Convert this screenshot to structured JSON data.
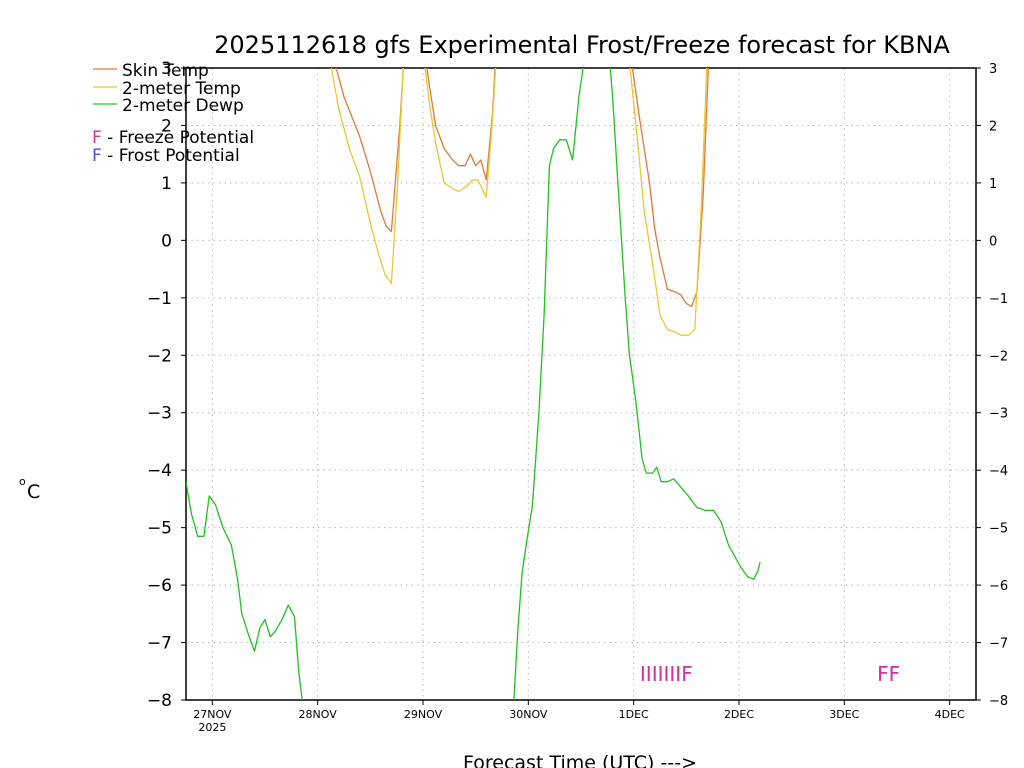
{
  "chart_data": {
    "type": "line",
    "title": "2025112618 gfs Experimental Frost/Freeze forecast for KBNA",
    "ylabel": "°C",
    "ylabel_unit": "C",
    "ylabel_degree": "o",
    "xlabel": "Forecast Time (UTC) --->",
    "ylim": [
      -8,
      3
    ],
    "xlim": [
      -0.25,
      7.25
    ],
    "yticks": [
      3,
      2,
      1,
      0,
      -1,
      -2,
      -3,
      -4,
      -5,
      -6,
      -7,
      -8
    ],
    "ytick_labels": [
      "3",
      "2",
      "1",
      "0",
      "−1",
      "−2",
      "−3",
      "−4",
      "−5",
      "−6",
      "−7",
      "−8"
    ],
    "xticks": [
      0,
      1,
      2,
      3,
      4,
      5,
      6,
      7
    ],
    "xtick_labels": [
      "27NOV",
      "28NOV",
      "29NOV",
      "30NOV",
      "1DEC",
      "2DEC",
      "3DEC",
      "4DEC"
    ],
    "xtick_sublabel": "2025",
    "grid": true,
    "legend": [
      {
        "label": "Skin Temp",
        "color": "#e07a3a"
      },
      {
        "label": "2-meter Temp",
        "color": "#e8c832"
      },
      {
        "label": "2-meter Dewp",
        "color": "#22c022"
      }
    ],
    "potential_legend": [
      {
        "letter": "F",
        "text": " - Freeze Potential",
        "color": "#d0309a"
      },
      {
        "letter": "F",
        "text": " - Frost Potential",
        "color": "#4a52e0"
      }
    ],
    "series": [
      {
        "name": "Skin Temp",
        "color": "#e07a3a",
        "segments": [
          [
            [
              1.1,
              3.5
            ],
            [
              1.25,
              2.5
            ],
            [
              1.4,
              1.8
            ],
            [
              1.5,
              1.2
            ],
            [
              1.6,
              0.5
            ],
            [
              1.65,
              0.25
            ],
            [
              1.7,
              0.15
            ],
            [
              1.78,
              2.0
            ],
            [
              1.83,
              3.5
            ]
          ],
          [
            [
              2.0,
              3.5
            ],
            [
              2.06,
              2.7
            ],
            [
              2.12,
              2.0
            ],
            [
              2.2,
              1.6
            ],
            [
              2.28,
              1.4
            ],
            [
              2.34,
              1.3
            ],
            [
              2.4,
              1.3
            ],
            [
              2.45,
              1.5
            ],
            [
              2.5,
              1.3
            ],
            [
              2.55,
              1.4
            ],
            [
              2.6,
              1.05
            ],
            [
              2.66,
              2.2
            ],
            [
              2.7,
              3.5
            ]
          ],
          [
            [
              3.95,
              3.5
            ],
            [
              4.05,
              2.2
            ],
            [
              4.15,
              1.0
            ],
            [
              4.2,
              0.2
            ],
            [
              4.25,
              -0.3
            ],
            [
              4.32,
              -0.85
            ],
            [
              4.4,
              -0.9
            ],
            [
              4.45,
              -0.95
            ],
            [
              4.5,
              -1.1
            ],
            [
              4.55,
              -1.15
            ],
            [
              4.6,
              -0.9
            ],
            [
              4.66,
              0.8
            ],
            [
              4.72,
              3.5
            ]
          ]
        ]
      },
      {
        "name": "2-meter Temp",
        "color": "#e8c832",
        "segments": [
          [
            [
              1.1,
              3.3
            ],
            [
              1.2,
              2.3
            ],
            [
              1.3,
              1.6
            ],
            [
              1.4,
              1.1
            ],
            [
              1.5,
              0.3
            ],
            [
              1.58,
              -0.25
            ],
            [
              1.64,
              -0.6
            ],
            [
              1.7,
              -0.75
            ],
            [
              1.76,
              1.0
            ],
            [
              1.82,
              3.3
            ]
          ],
          [
            [
              2.0,
              3.3
            ],
            [
              2.06,
              2.4
            ],
            [
              2.12,
              1.7
            ],
            [
              2.2,
              1.0
            ],
            [
              2.28,
              0.9
            ],
            [
              2.34,
              0.85
            ],
            [
              2.42,
              0.95
            ],
            [
              2.47,
              1.05
            ],
            [
              2.52,
              1.05
            ],
            [
              2.6,
              0.75
            ],
            [
              2.66,
              2.1
            ],
            [
              2.7,
              3.3
            ]
          ],
          [
            [
              3.95,
              3.3
            ],
            [
              4.05,
              1.5
            ],
            [
              4.1,
              0.5
            ],
            [
              4.18,
              -0.4
            ],
            [
              4.25,
              -1.3
            ],
            [
              4.32,
              -1.55
            ],
            [
              4.4,
              -1.6
            ],
            [
              4.45,
              -1.65
            ],
            [
              4.52,
              -1.65
            ],
            [
              4.58,
              -1.55
            ],
            [
              4.64,
              0.5
            ],
            [
              4.7,
              3.3
            ]
          ]
        ]
      },
      {
        "name": "2-meter Dewp",
        "color": "#22c022",
        "segments": [
          [
            [
              -0.25,
              -4.2
            ],
            [
              -0.2,
              -4.75
            ],
            [
              -0.14,
              -5.15
            ],
            [
              -0.08,
              -5.15
            ],
            [
              -0.03,
              -4.45
            ],
            [
              0.03,
              -4.6
            ],
            [
              0.1,
              -5.0
            ],
            [
              0.18,
              -5.3
            ],
            [
              0.24,
              -5.9
            ],
            [
              0.28,
              -6.5
            ],
            [
              0.35,
              -6.9
            ],
            [
              0.4,
              -7.15
            ],
            [
              0.45,
              -6.75
            ],
            [
              0.5,
              -6.6
            ],
            [
              0.55,
              -6.9
            ],
            [
              0.6,
              -6.8
            ],
            [
              0.66,
              -6.6
            ],
            [
              0.72,
              -6.35
            ],
            [
              0.78,
              -6.55
            ],
            [
              0.82,
              -7.5
            ],
            [
              0.86,
              -8.1
            ]
          ],
          [
            [
              2.86,
              -8.1
            ],
            [
              2.9,
              -6.8
            ],
            [
              2.94,
              -5.8
            ],
            [
              2.98,
              -5.3
            ],
            [
              3.04,
              -4.6
            ],
            [
              3.1,
              -3.0
            ],
            [
              3.15,
              -1.3
            ],
            [
              3.2,
              1.3
            ],
            [
              3.24,
              1.6
            ],
            [
              3.3,
              1.75
            ],
            [
              3.36,
              1.75
            ],
            [
              3.42,
              1.4
            ],
            [
              3.48,
              2.5
            ],
            [
              3.52,
              3.0
            ],
            [
              3.58,
              3.4
            ]
          ],
          [
            [
              3.76,
              3.4
            ],
            [
              3.8,
              2.5
            ],
            [
              3.85,
              1.0
            ],
            [
              3.92,
              -1.0
            ],
            [
              3.96,
              -2.0
            ],
            [
              4.02,
              -2.8
            ],
            [
              4.08,
              -3.8
            ],
            [
              4.12,
              -4.05
            ],
            [
              4.18,
              -4.05
            ],
            [
              4.22,
              -3.95
            ],
            [
              4.26,
              -4.2
            ],
            [
              4.32,
              -4.2
            ],
            [
              4.38,
              -4.15
            ],
            [
              4.45,
              -4.3
            ],
            [
              4.52,
              -4.45
            ],
            [
              4.6,
              -4.65
            ],
            [
              4.68,
              -4.7
            ],
            [
              4.76,
              -4.7
            ],
            [
              4.83,
              -4.9
            ],
            [
              4.9,
              -5.3
            ],
            [
              4.96,
              -5.5
            ],
            [
              5.02,
              -5.7
            ],
            [
              5.08,
              -5.85
            ],
            [
              5.14,
              -5.9
            ],
            [
              5.18,
              -5.75
            ],
            [
              5.2,
              -5.6
            ]
          ]
        ]
      }
    ],
    "freeze_marks": [
      {
        "x": 4.31,
        "text": "IIIIIIIF",
        "color": "#d0309a"
      },
      {
        "x": 6.42,
        "text": "FF",
        "color": "#d0309a"
      }
    ],
    "marker_y": -7.55
  }
}
